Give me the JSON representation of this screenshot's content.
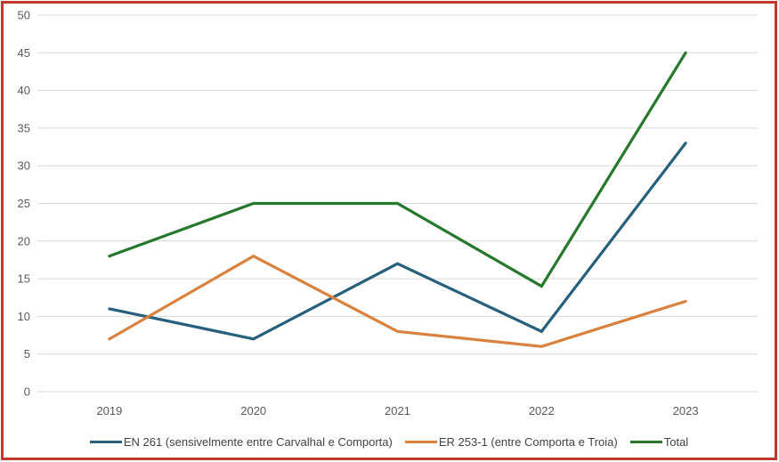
{
  "chart_data": {
    "type": "line",
    "title": "",
    "categories": [
      "2019",
      "2020",
      "2021",
      "2022",
      "2023"
    ],
    "series": [
      {
        "name": "EN 261 (sensivelmente entre Carvalhal e Comporta)",
        "values": [
          11,
          7,
          17,
          8,
          33
        ],
        "color": "#26607C"
      },
      {
        "name": "ER 253-1 (entre Comporta e Troia)",
        "values": [
          7,
          18,
          8,
          6,
          12
        ],
        "color": "#D9813D"
      },
      {
        "name": "Total",
        "values": [
          18,
          25,
          25,
          14,
          45
        ],
        "color": "#26792C"
      }
    ],
    "xlabel": "",
    "ylabel": "",
    "ylim": [
      0,
      50
    ],
    "y_ticks": [
      0,
      5,
      10,
      15,
      20,
      25,
      30,
      35,
      40,
      45,
      50
    ],
    "grid": true,
    "legend_position": "bottom",
    "colors": {
      "gridline": "#D9D9D9",
      "axis_label": "#595959",
      "frame_border": "#C0392B",
      "background": "#FFFFFF"
    }
  }
}
